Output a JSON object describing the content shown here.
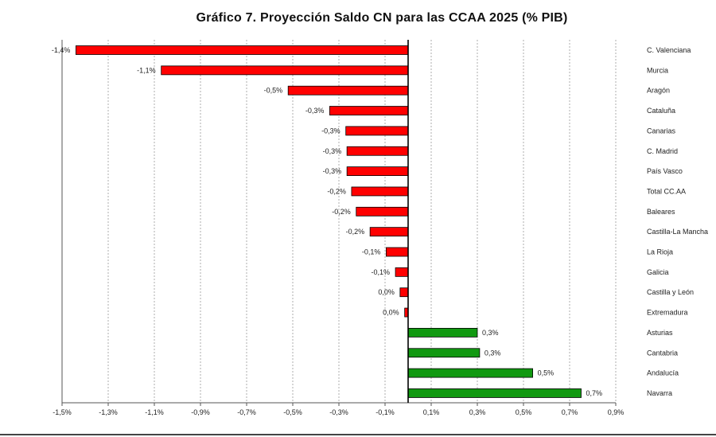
{
  "chart_data": {
    "type": "bar",
    "orientation": "horizontal",
    "title": "Gráfico 7. Proyección Saldo CN para las CCAA 2025 (% PIB)",
    "xlabel": "",
    "ylabel": "",
    "xlim": [
      -1.5,
      0.9
    ],
    "grid": true,
    "colors": {
      "negative": "#ff0000",
      "positive": "#119911"
    },
    "x_ticks": [
      {
        "value": -1.5,
        "label": "-1,5%"
      },
      {
        "value": -1.3,
        "label": "-1,3%"
      },
      {
        "value": -1.1,
        "label": "-1,1%"
      },
      {
        "value": -0.9,
        "label": "-0,9%"
      },
      {
        "value": -0.7,
        "label": "-0,7%"
      },
      {
        "value": -0.5,
        "label": "-0,5%"
      },
      {
        "value": -0.3,
        "label": "-0,3%"
      },
      {
        "value": -0.1,
        "label": "-0,1%"
      },
      {
        "value": 0.1,
        "label": "0,1%"
      },
      {
        "value": 0.3,
        "label": "0,3%"
      },
      {
        "value": 0.5,
        "label": "0,5%"
      },
      {
        "value": 0.7,
        "label": "0,7%"
      },
      {
        "value": 0.9,
        "label": "0,9%"
      }
    ],
    "categories": [
      "C. Valenciana",
      "Murcia",
      "Aragón",
      "Cataluña",
      "Canarias",
      "C. Madrid",
      "País Vasco",
      "Total CC.AA",
      "Baleares",
      "Castilla-La Mancha",
      "La Rioja",
      "Galicia",
      "Castilla y León",
      "Extremadura",
      "Asturias",
      "Cantabria",
      "Andalucía",
      "Navarra"
    ],
    "values": [
      -1.44,
      -1.07,
      -0.52,
      -0.34,
      -0.27,
      -0.265,
      -0.265,
      -0.245,
      -0.225,
      -0.165,
      -0.095,
      -0.055,
      -0.035,
      -0.015,
      0.3,
      0.31,
      0.54,
      0.75
    ],
    "data_labels": [
      "-1,4%",
      "-1,1%",
      "-0,5%",
      "-0,3%",
      "-0,3%",
      "-0,3%",
      "-0,3%",
      "-0,2%",
      "-0,2%",
      "-0,2%",
      "-0,1%",
      "-0,1%",
      "0,0%",
      "0,0%",
      "0,3%",
      "0,3%",
      "0,5%",
      "0,7%"
    ]
  }
}
